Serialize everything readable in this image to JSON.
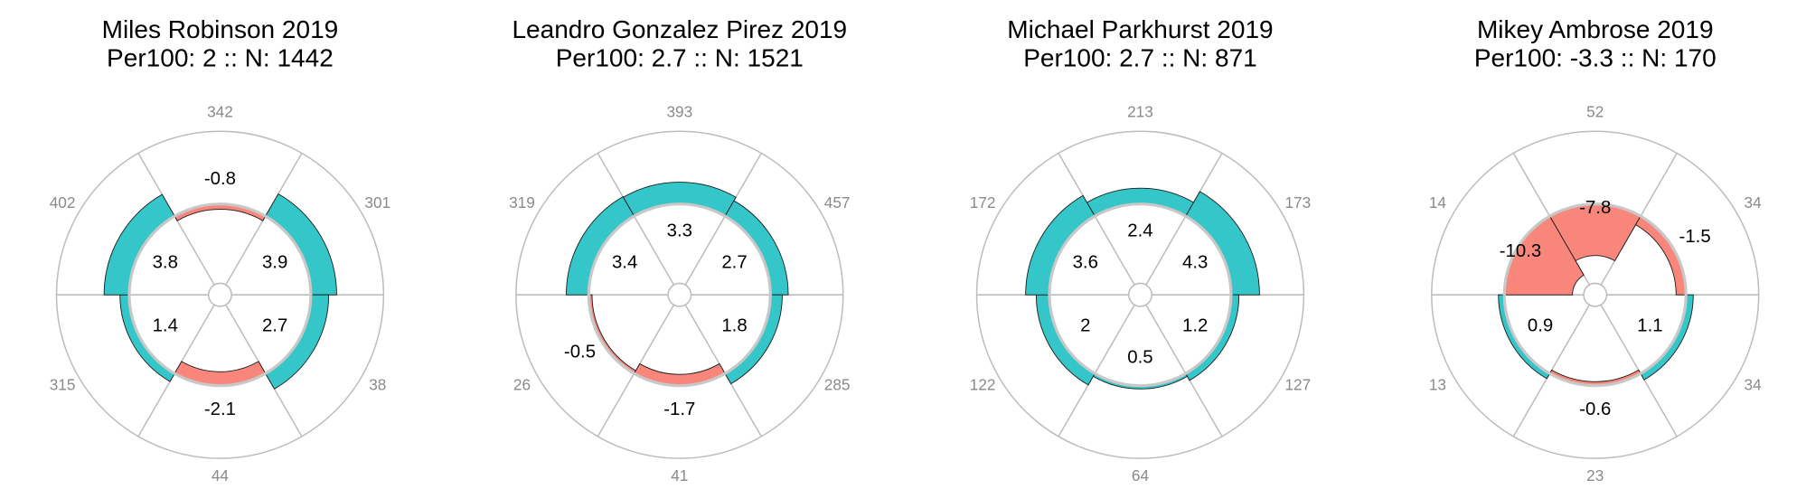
{
  "chart_data": [
    {
      "type": "polar-bar",
      "title": "Miles Robinson 2019",
      "subtitle": "Per100: 2 :: N: 1442",
      "values": [
        -0.8,
        3.9,
        2.7,
        -2.1,
        1.4,
        3.8
      ],
      "counts": [
        342,
        301,
        38,
        44,
        315,
        402
      ],
      "colors": {
        "positive": "#35c6c9",
        "negative": "#f8867a"
      },
      "rlim": [
        -12,
        11
      ]
    },
    {
      "type": "polar-bar",
      "title": "Leandro Gonzalez Pirez 2019",
      "subtitle": "Per100: 2.7 :: N: 1521",
      "values": [
        3.3,
        2.7,
        1.8,
        -1.7,
        -0.5,
        3.4
      ],
      "counts": [
        393,
        457,
        285,
        41,
        26,
        319
      ],
      "colors": {
        "positive": "#35c6c9",
        "negative": "#f8867a"
      },
      "rlim": [
        -12,
        11
      ]
    },
    {
      "type": "polar-bar",
      "title": "Michael Parkhurst 2019",
      "subtitle": "Per100: 2.7 :: N: 871",
      "values": [
        2.4,
        4.3,
        1.2,
        0.5,
        2,
        3.6
      ],
      "counts": [
        213,
        173,
        127,
        64,
        122,
        172
      ],
      "colors": {
        "positive": "#35c6c9",
        "negative": "#f8867a"
      },
      "rlim": [
        -12,
        11
      ]
    },
    {
      "type": "polar-bar",
      "title": "Mikey Ambrose 2019",
      "subtitle": "Per100: -3.3 :: N: 170",
      "values": [
        -7.8,
        -1.5,
        1.1,
        -0.6,
        0.9,
        -10.3
      ],
      "counts": [
        52,
        34,
        34,
        23,
        13,
        14
      ],
      "colors": {
        "positive": "#35c6c9",
        "negative": "#f8867a"
      },
      "rlim": [
        -12,
        11
      ]
    }
  ]
}
